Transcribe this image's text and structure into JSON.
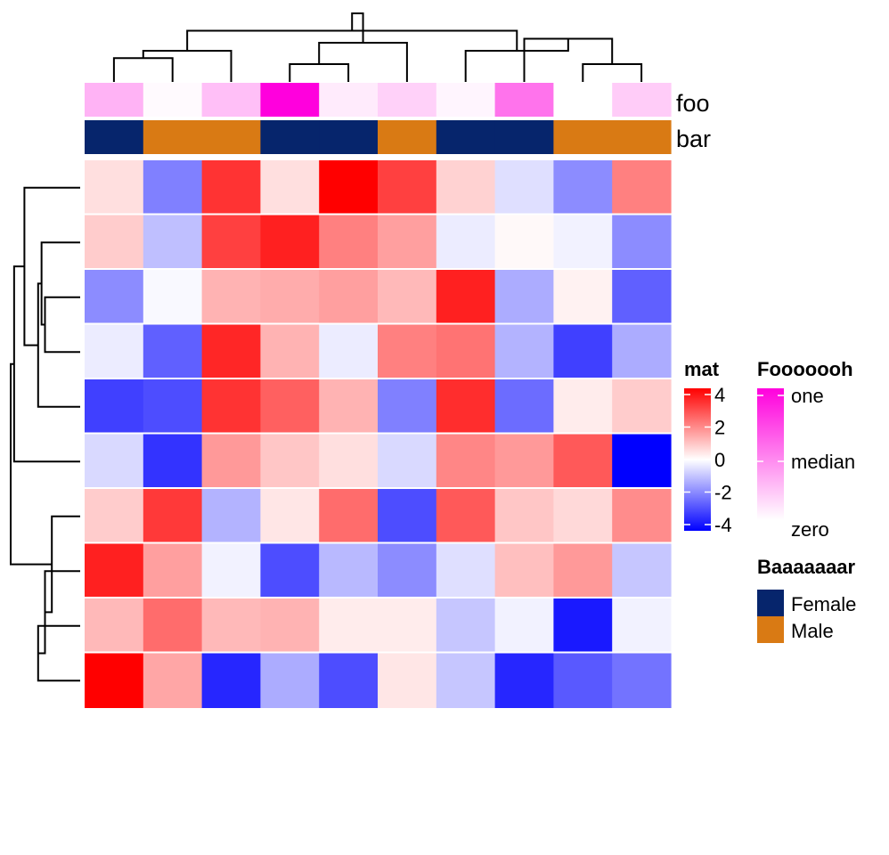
{
  "chart_data": {
    "type": "heatmap",
    "rows": 10,
    "cols": 10,
    "values": [
      [
        0.5,
        -2.0,
        3.2,
        0.5,
        4.2,
        3.0,
        0.7,
        -0.5,
        -1.8,
        2.0
      ],
      [
        0.8,
        -1.0,
        3.0,
        3.5,
        2.0,
        1.5,
        -0.3,
        0.1,
        -0.2,
        -1.8
      ],
      [
        -1.8,
        -0.1,
        1.2,
        1.3,
        1.5,
        1.1,
        3.5,
        -1.3,
        0.2,
        -2.5
      ],
      [
        -0.3,
        -2.5,
        3.4,
        1.2,
        -0.3,
        2.0,
        2.2,
        -1.2,
        -3.0,
        -1.3
      ],
      [
        -3.0,
        -2.8,
        3.2,
        2.5,
        1.2,
        -2.0,
        3.3,
        -2.3,
        0.3,
        0.8
      ],
      [
        -0.6,
        -3.2,
        1.6,
        0.9,
        0.5,
        -0.6,
        1.9,
        1.6,
        2.6,
        -4.0
      ],
      [
        0.8,
        3.1,
        -1.2,
        0.4,
        2.3,
        -2.8,
        2.6,
        0.9,
        0.6,
        1.8
      ],
      [
        3.5,
        1.5,
        -0.2,
        -2.8,
        -1.1,
        -1.8,
        -0.5,
        1.0,
        1.6,
        -0.9
      ],
      [
        1.1,
        2.3,
        1.1,
        1.2,
        0.3,
        0.3,
        -0.9,
        -0.2,
        -3.6,
        -0.2
      ],
      [
        4.2,
        1.4,
        -3.4,
        -1.3,
        -2.8,
        0.4,
        -0.9,
        -3.4,
        -2.6,
        -2.2
      ]
    ],
    "color_scale": {
      "domain": [
        -4,
        0,
        4
      ],
      "colors": [
        "#0000ff",
        "#ffffff",
        "#ff0000"
      ]
    },
    "annotations": {
      "foo": {
        "label": "foo",
        "values": [
          0.3,
          0.02,
          0.25,
          1.0,
          0.08,
          0.18,
          0.04,
          0.55,
          0.0,
          0.2
        ]
      },
      "bar": {
        "label": "bar",
        "values": [
          "Female",
          "Male",
          "Male",
          "Female",
          "Female",
          "Male",
          "Female",
          "Female",
          "Male",
          "Male"
        ]
      }
    },
    "legends": {
      "mat": {
        "title": "mat",
        "ticks": [
          "4",
          "2",
          "0",
          "-2",
          "-4"
        ],
        "tick_values": [
          4,
          2,
          0,
          -2,
          -4
        ]
      },
      "foo": {
        "title": "Fooooooh",
        "ticks": [
          "one",
          "median",
          "zero"
        ],
        "colors": [
          "#ff00dd",
          "#ffffff"
        ]
      },
      "bar": {
        "title": "Baaaaaaar",
        "entries": [
          {
            "label": "Female",
            "color": "#06256c"
          },
          {
            "label": "Male",
            "color": "#d97a14"
          }
        ]
      }
    },
    "column_dendrogram": [
      [
        0,
        1,
        0.67
      ],
      [
        3,
        4,
        0.76
      ],
      [
        2,
        10,
        0.56
      ],
      [
        11,
        5,
        0.44
      ],
      [
        8,
        9,
        0.76
      ],
      [
        7,
        14,
        0.38
      ],
      [
        6,
        15,
        0.56
      ],
      [
        12,
        16,
        0.26
      ],
      [
        13,
        17,
        0.0
      ]
    ],
    "row_dendrogram": [
      [
        2,
        3,
        0.5
      ],
      [
        1,
        10,
        0.45
      ],
      [
        4,
        11,
        0.4
      ],
      [
        0,
        12,
        0.2
      ],
      [
        5,
        13,
        0.05
      ],
      [
        8,
        9,
        0.4
      ],
      [
        7,
        15,
        0.5
      ],
      [
        6,
        16,
        0.6
      ],
      [
        14,
        17,
        0.0
      ]
    ]
  }
}
